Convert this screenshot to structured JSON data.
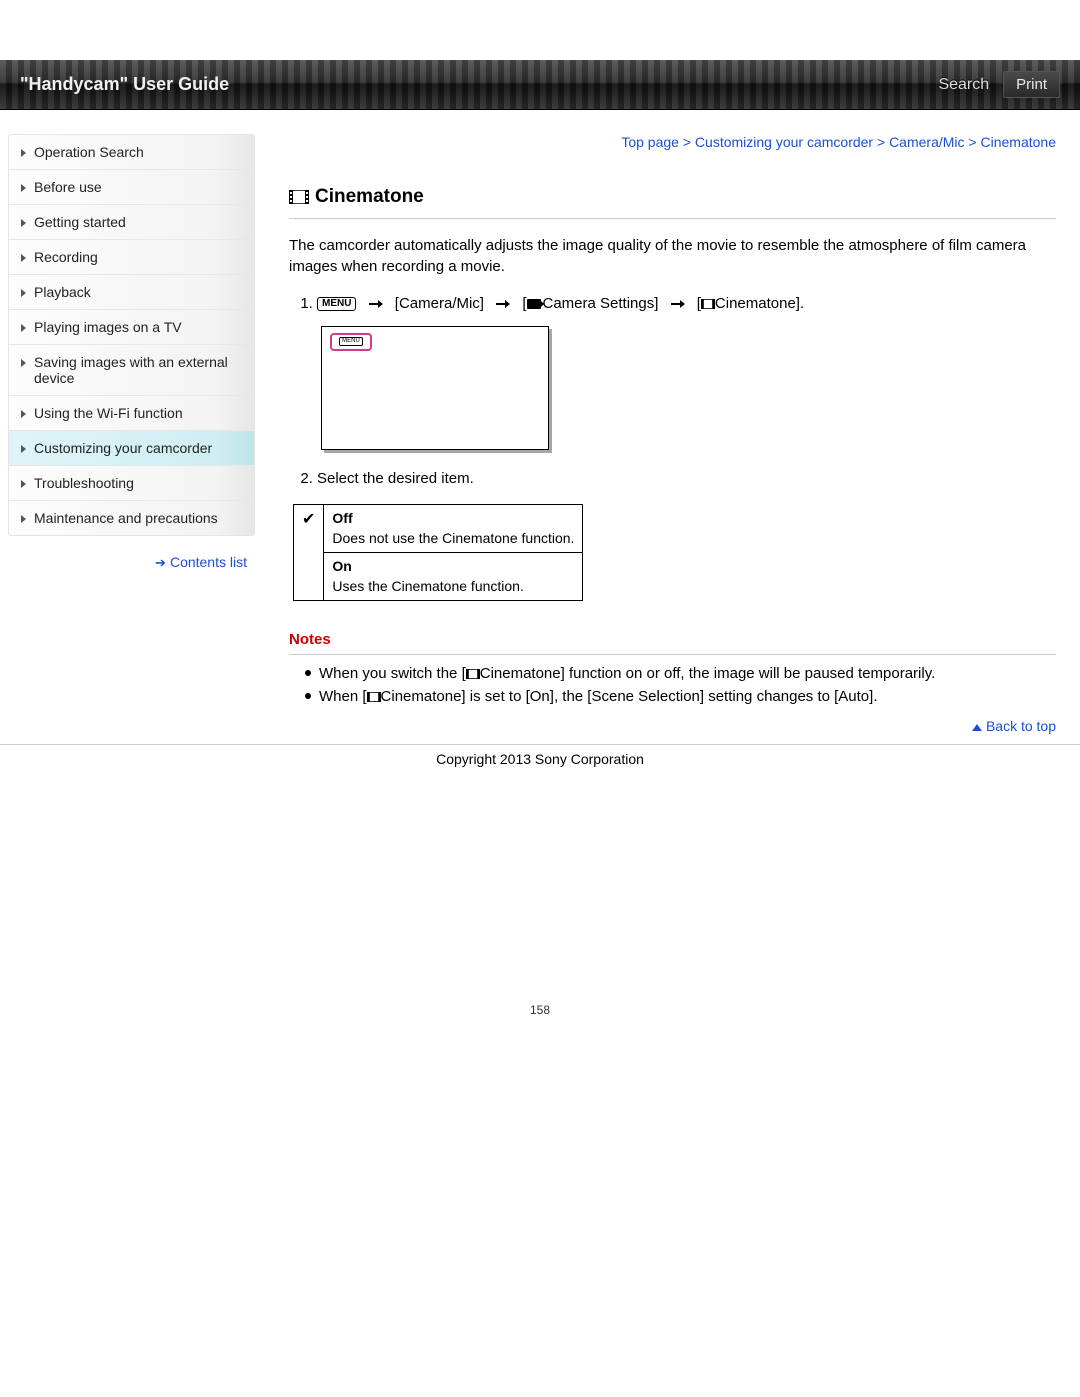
{
  "header": {
    "title": "\"Handycam\" User Guide",
    "search_label": "Search",
    "print_label": "Print"
  },
  "sidebar": {
    "items": [
      {
        "label": "Operation Search",
        "active": false
      },
      {
        "label": "Before use",
        "active": false
      },
      {
        "label": "Getting started",
        "active": false
      },
      {
        "label": "Recording",
        "active": false
      },
      {
        "label": "Playback",
        "active": false
      },
      {
        "label": "Playing images on a TV",
        "active": false
      },
      {
        "label": "Saving images with an external device",
        "active": false
      },
      {
        "label": "Using the Wi-Fi function",
        "active": false
      },
      {
        "label": "Customizing your camcorder",
        "active": true
      },
      {
        "label": "Troubleshooting",
        "active": false
      },
      {
        "label": "Maintenance and precautions",
        "active": false
      }
    ],
    "contents_list_label": "Contents list"
  },
  "breadcrumb": {
    "items": [
      "Top page",
      "Customizing your camcorder",
      "Camera/Mic",
      "Cinematone"
    ],
    "separator": " > "
  },
  "page": {
    "title": "Cinematone",
    "intro": "The camcorder automatically adjusts the image quality of the movie to resemble the atmosphere of film camera images when recording a movie.",
    "menu_label": "MENU",
    "step1_path": {
      "seg1": "[Camera/Mic]",
      "seg2_prefix": "[",
      "seg2_label": "Camera Settings]",
      "seg3_prefix": "[",
      "seg3_label": "Cinematone]."
    },
    "step2": "Select the desired item.",
    "options": [
      {
        "checked": true,
        "title": "Off",
        "desc": "Does not use the Cinematone function."
      },
      {
        "checked": false,
        "title": "On",
        "desc": "Uses the Cinematone function."
      }
    ],
    "notes_heading": "Notes",
    "notes": [
      {
        "pre": "When you switch the [",
        "mid": "Cinematone] function on or off, the image will be paused temporarily."
      },
      {
        "pre": "When [",
        "mid": "Cinematone] is set to [On], the [Scene Selection] setting changes to [Auto]."
      }
    ],
    "back_to_top": "Back to top"
  },
  "footer": {
    "copyright": "Copyright 2013 Sony Corporation",
    "page_number": "158"
  },
  "colors": {
    "link": "#1a4fd8",
    "notes_heading": "#cc0000",
    "sidebar_active_bg": "#dff4f7",
    "highlight_border": "#d33a8a"
  }
}
